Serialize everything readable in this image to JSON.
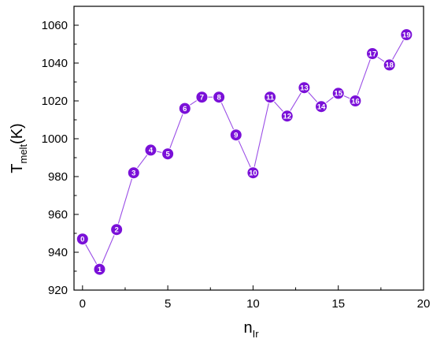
{
  "chart_data": {
    "type": "line",
    "x": [
      0,
      1,
      2,
      3,
      4,
      5,
      6,
      7,
      8,
      9,
      10,
      11,
      12,
      13,
      14,
      15,
      16,
      17,
      18,
      19
    ],
    "series": [
      {
        "values": [
          947,
          931,
          952,
          982,
          994,
          992,
          1016,
          1022,
          1022,
          1002,
          982,
          1022,
          1012,
          1027,
          1017,
          1024,
          1020,
          1045,
          1039,
          1055
        ],
        "point_labels": [
          "0",
          "1",
          "2",
          "3",
          "4",
          "5",
          "6",
          "7",
          "8",
          "9",
          "10",
          "11",
          "12",
          "13",
          "14",
          "15",
          "16",
          "17",
          "18",
          "19"
        ]
      }
    ],
    "xlabel": {
      "main": "n",
      "sub": "Ir"
    },
    "ylabel": {
      "main": "T",
      "sub": "melt",
      "suffix": "(K)"
    },
    "xlim": [
      -0.5,
      20
    ],
    "ylim": [
      920,
      1070
    ],
    "xticks": [
      "0",
      "5",
      "10",
      "15",
      "20"
    ],
    "yticks": [
      "920",
      "940",
      "960",
      "980",
      "1000",
      "1020",
      "1040",
      "1060"
    ],
    "grid": false,
    "marker_color": "#7a10d8",
    "line_color": "#9a4de6"
  }
}
